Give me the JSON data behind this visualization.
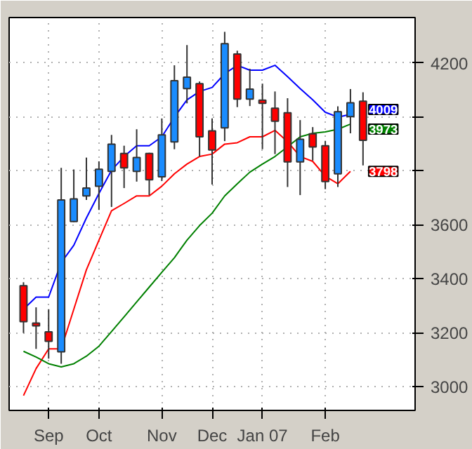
{
  "chart_data": {
    "type": "candlestick",
    "x": [
      "2006-08-21",
      "2006-08-28",
      "2006-09-04",
      "2006-09-11",
      "2006-09-18",
      "2006-09-25",
      "2006-10-02",
      "2006-10-09",
      "2006-10-16",
      "2006-10-23",
      "2006-10-30",
      "2006-11-06",
      "2006-11-13",
      "2006-11-20",
      "2006-11-27",
      "2006-12-04",
      "2006-12-11",
      "2006-12-18",
      "2006-12-25",
      "2007-01-01",
      "2007-01-08",
      "2007-01-15",
      "2007-01-22",
      "2007-01-29",
      "2007-02-05",
      "2007-02-12",
      "2007-02-19",
      "2007-02-26"
    ],
    "ohlc": [
      [
        3374,
        3387,
        3199,
        3241
      ],
      [
        3236,
        3294,
        3140,
        3225
      ],
      [
        3203,
        3287,
        3104,
        3168
      ],
      [
        3129,
        3811,
        3085,
        3692
      ],
      [
        3612,
        3805,
        3610,
        3696
      ],
      [
        3707,
        3849,
        3692,
        3736
      ],
      [
        3743,
        3835,
        3655,
        3806
      ],
      [
        3798,
        3933,
        3666,
        3899
      ],
      [
        3864,
        3893,
        3736,
        3811
      ],
      [
        3798,
        3954,
        3760,
        3849
      ],
      [
        3864,
        3867,
        3710,
        3767
      ],
      [
        3778,
        3994,
        3762,
        3933
      ],
      [
        3907,
        4191,
        3880,
        4134
      ],
      [
        4105,
        4266,
        4050,
        4147
      ],
      [
        4123,
        4131,
        3853,
        3926
      ],
      [
        3948,
        3994,
        3749,
        3877
      ],
      [
        3959,
        4315,
        3910,
        4271
      ],
      [
        4233,
        4245,
        4036,
        4066
      ],
      [
        4066,
        4178,
        4040,
        4103
      ],
      [
        4062,
        4123,
        3880,
        4050
      ],
      [
        4032,
        4094,
        3862,
        3984
      ],
      [
        4015,
        4069,
        3740,
        3833
      ],
      [
        3833,
        3988,
        3710,
        3917
      ],
      [
        3937,
        3962,
        3838,
        3888
      ],
      [
        3893,
        3911,
        3732,
        3760
      ],
      [
        3789,
        4039,
        3740,
        4019
      ],
      [
        4001,
        4103,
        3939,
        4052
      ],
      [
        4058,
        4091,
        3820,
        3913
      ]
    ],
    "colors": [
      "#ff0000",
      "#ff0000",
      "#ff0000",
      "#1a8cff",
      "#1a8cff",
      "#1a8cff",
      "#1a8cff",
      "#1a8cff",
      "#ff0000",
      "#1a8cff",
      "#ff0000",
      "#1a8cff",
      "#1a8cff",
      "#1a8cff",
      "#ff0000",
      "#ff0000",
      "#1a8cff",
      "#ff0000",
      "#1a8cff",
      "#ff0000",
      "#ff0000",
      "#ff0000",
      "#1a8cff",
      "#ff0000",
      "#ff0000",
      "#1a8cff",
      "#1a8cff",
      "#ff0000"
    ],
    "series": [
      {
        "type": "line",
        "color": "#0000ff",
        "values": [
          3287,
          3332,
          3332,
          3460,
          3524,
          3625,
          3716,
          3802,
          3853,
          3893,
          3893,
          3926,
          3999,
          4063,
          4094,
          4109,
          4160,
          4191,
          4173,
          4173,
          4191,
          4149,
          4105,
          4063,
          4017,
          3999,
          4009,
          null
        ],
        "value_labels": [
          null,
          null,
          null,
          null,
          null,
          null,
          null,
          null,
          null,
          null,
          null,
          null,
          null,
          null,
          null,
          null,
          null,
          null,
          null,
          null,
          null,
          null,
          null,
          null,
          null,
          null,
          "4009",
          null
        ]
      },
      {
        "type": "line",
        "color": "#ff0000",
        "values": [
          2967,
          3067,
          3140,
          3140,
          3287,
          3433,
          3543,
          3652,
          3679,
          3707,
          3707,
          3743,
          3789,
          3825,
          3853,
          3862,
          3899,
          3904,
          3926,
          3926,
          3950,
          3908,
          3853,
          3835,
          3780,
          3752,
          3798,
          null
        ],
        "value_labels": [
          null,
          null,
          null,
          null,
          null,
          null,
          null,
          null,
          null,
          null,
          null,
          null,
          null,
          null,
          null,
          null,
          null,
          null,
          null,
          null,
          null,
          null,
          null,
          null,
          null,
          null,
          "3798",
          null
        ]
      },
      {
        "type": "line",
        "color": "#008000",
        "values": [
          3131,
          3110,
          3085,
          3073,
          3085,
          3113,
          3150,
          3204,
          3259,
          3314,
          3369,
          3424,
          3478,
          3543,
          3597,
          3643,
          3707,
          3752,
          3795,
          3825,
          3853,
          3889,
          3926,
          3939,
          3944,
          3954,
          3973,
          null
        ],
        "value_labels": [
          null,
          null,
          null,
          null,
          null,
          null,
          null,
          null,
          null,
          null,
          null,
          null,
          null,
          null,
          null,
          null,
          null,
          null,
          null,
          null,
          null,
          null,
          null,
          null,
          null,
          null,
          "3973",
          null
        ]
      }
    ],
    "xlim": [
      "2006-08-13",
      "2007-03-27"
    ],
    "xticks": [
      {
        "value": "2006-09-04",
        "label": "Sep"
      },
      {
        "value": "2006-10-02",
        "label": "Oct"
      },
      {
        "value": "2006-11-06",
        "label": "Nov"
      },
      {
        "value": "2006-12-04",
        "label": "Dec"
      },
      {
        "value": "2007-01-01",
        "label": "Jan 07"
      },
      {
        "value": "2007-02-05",
        "label": "Feb"
      }
    ],
    "ylim": [
      2912,
      4368
    ],
    "yticks": [
      3000,
      3200,
      3400,
      3600,
      {
        "value": 3800,
        "label": null
      },
      {
        "value": 4000,
        "label": null
      },
      4200
    ],
    "grid": true
  }
}
